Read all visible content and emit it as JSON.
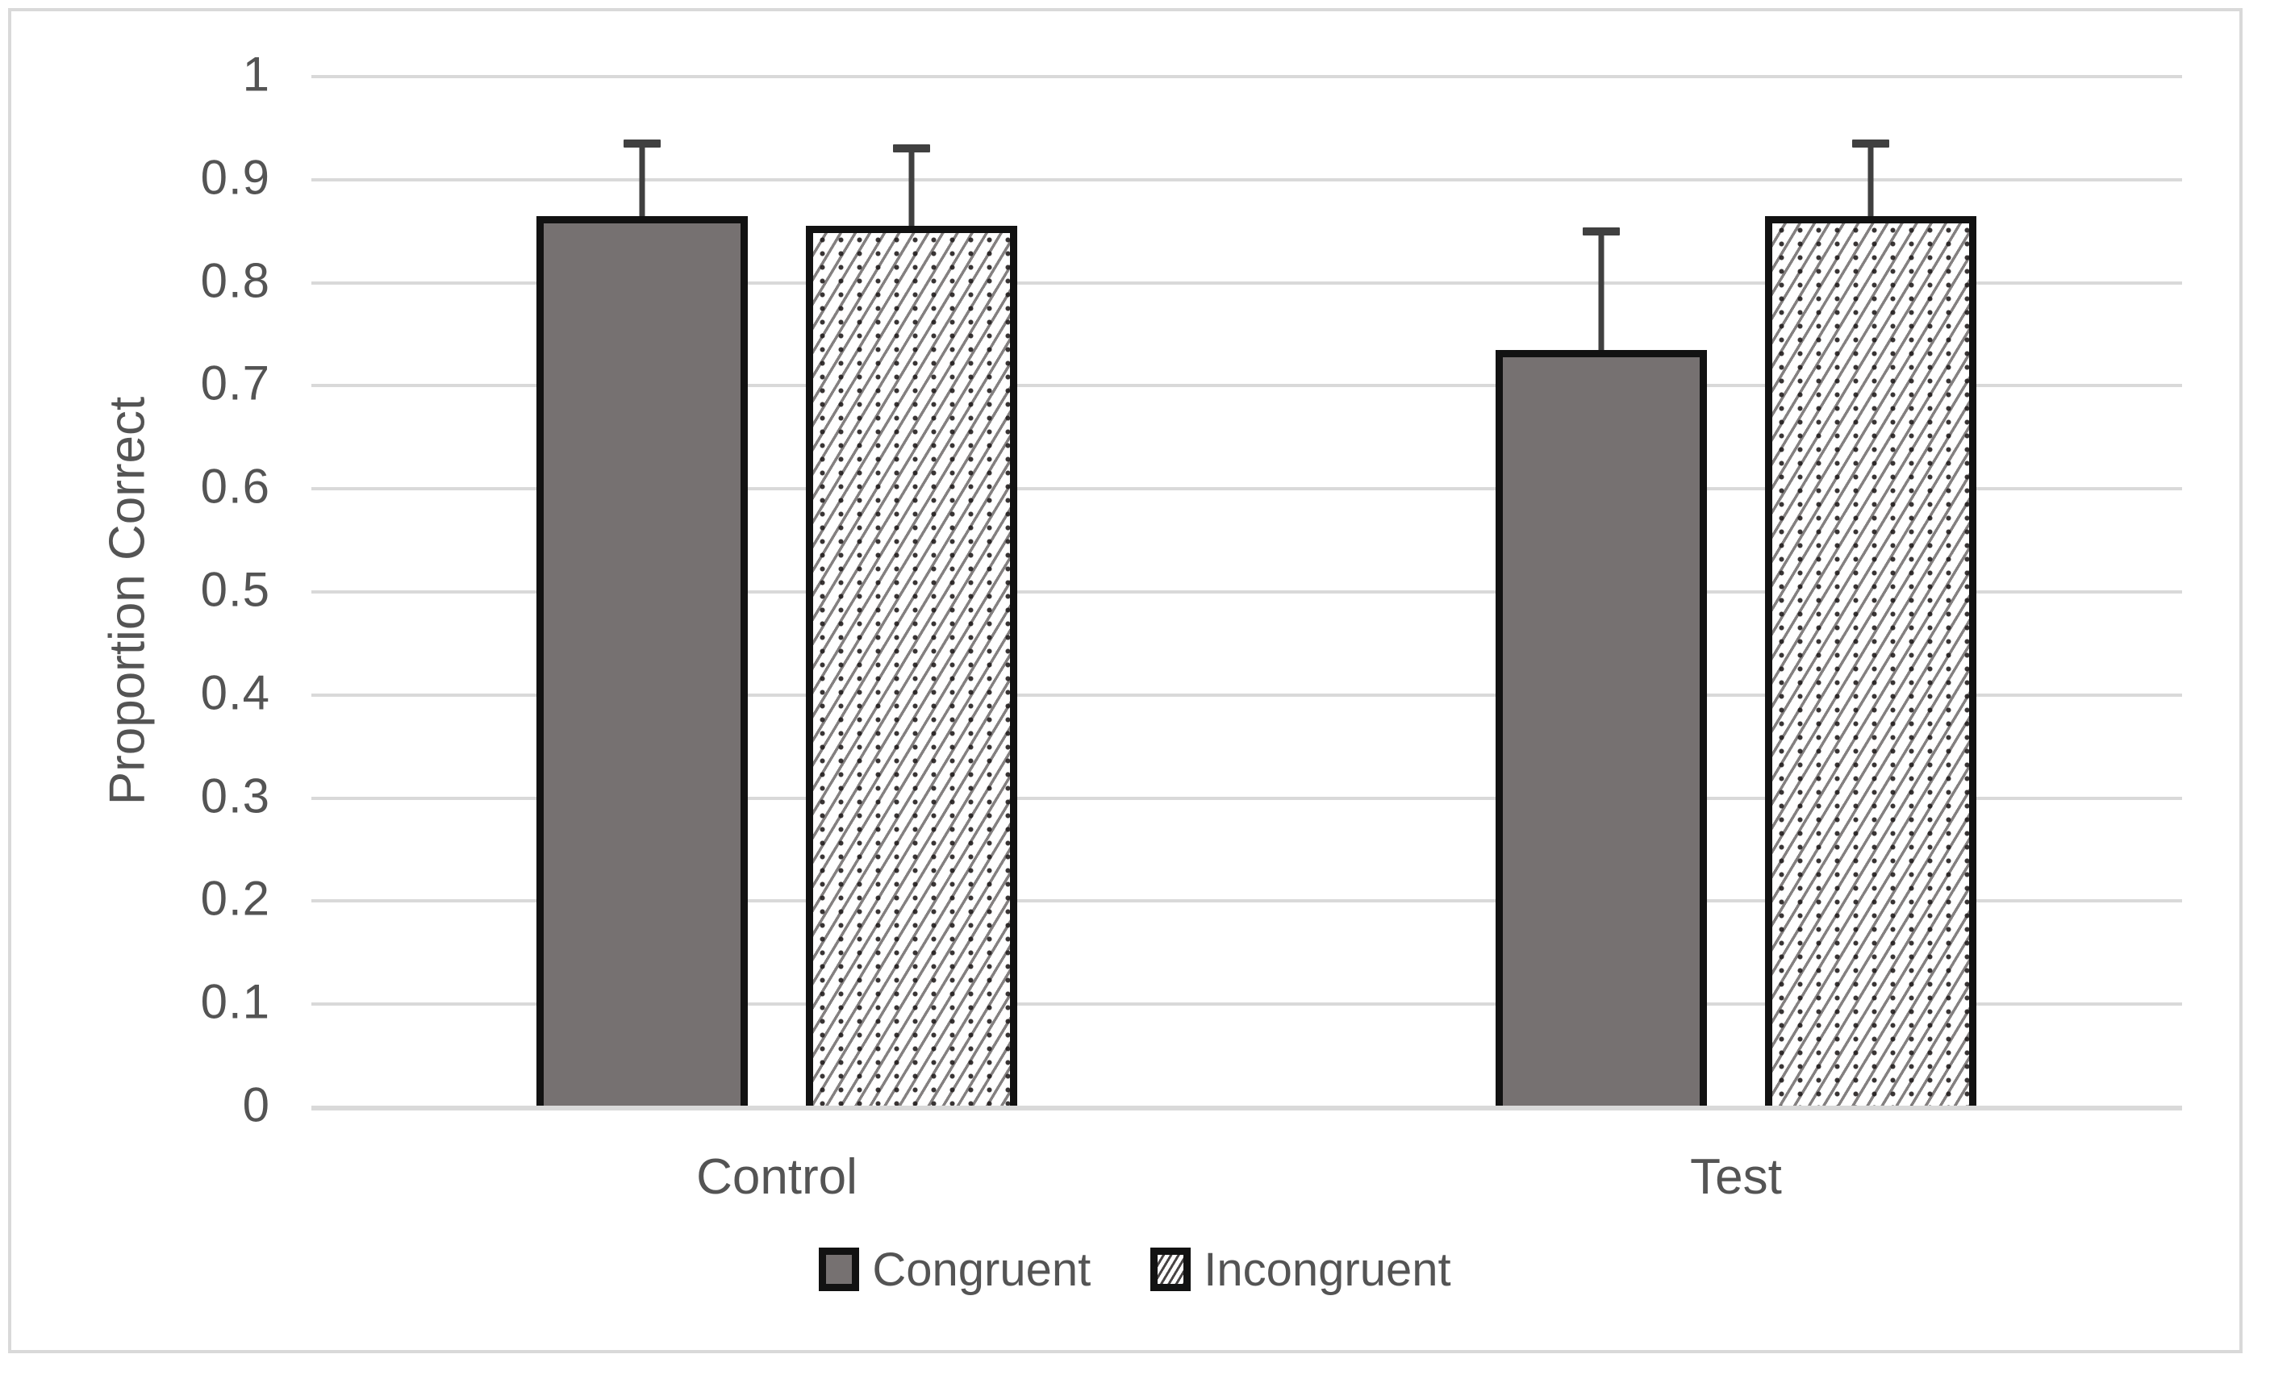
{
  "chart_data": {
    "type": "bar",
    "title": "",
    "ylabel": "Proportion Correct",
    "xlabel": "",
    "categories": [
      "Control",
      "Test"
    ],
    "series": [
      {
        "name": "Congruent",
        "style": "solid",
        "values": [
          0.865,
          0.735
        ],
        "errors_plus": [
          0.07,
          0.115
        ]
      },
      {
        "name": "Incongruent",
        "style": "hatch",
        "values": [
          0.855,
          0.865
        ],
        "errors_plus": [
          0.075,
          0.07
        ]
      }
    ],
    "ylim": [
      0,
      1
    ],
    "yticks": [
      0,
      0.1,
      0.2,
      0.3,
      0.4,
      0.5,
      0.6,
      0.7,
      0.8,
      0.9,
      1
    ],
    "ytick_labels": [
      "0",
      "0.1",
      "0.2",
      "0.3",
      "0.4",
      "0.5",
      "0.6",
      "0.7",
      "0.8",
      "0.9",
      "1"
    ],
    "grid": "horizontal",
    "legend_position": "bottom",
    "error_bars": "plus-only"
  },
  "colors": {
    "bar_fill": "#767171",
    "bar_border": "#121212",
    "error_bar": "#404040",
    "gridline": "#d9d9d9",
    "frame_border": "#d9d9d9",
    "text": "#545454",
    "background": "#ffffff"
  }
}
